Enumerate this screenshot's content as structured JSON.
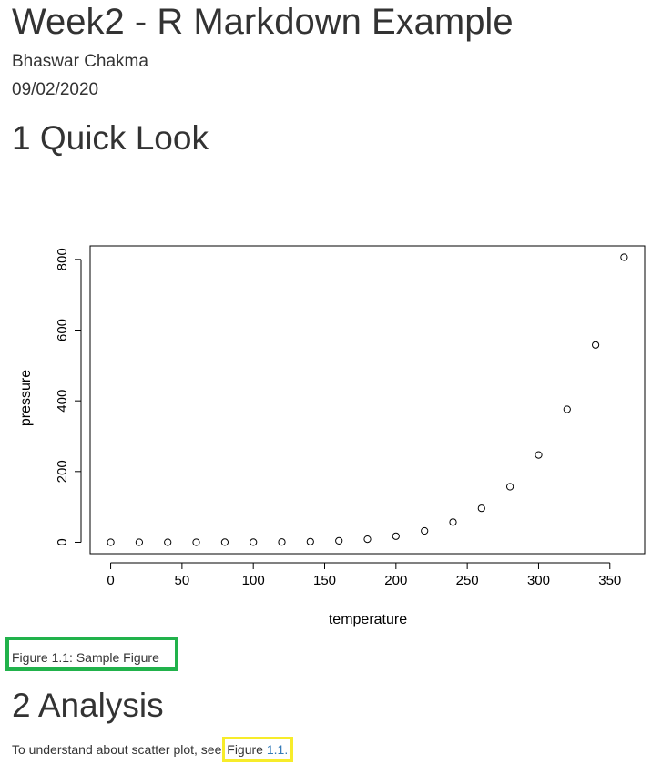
{
  "doc": {
    "title": "Week2 - R Markdown Example",
    "author": "Bhaswar Chakma",
    "date": "09/02/2020"
  },
  "sections": [
    {
      "heading": "1 Quick Look"
    },
    {
      "heading": "2 Analysis"
    }
  ],
  "figure": {
    "caption": "Figure 1.1: Sample Figure"
  },
  "analysis": {
    "text": "To understand about scatter plot, see",
    "link_word": "Figure",
    "link_num": "1.1",
    "link_end": "."
  },
  "colors": {
    "caption_highlight": "#21b24b",
    "link_highlight": "#f7ec2a",
    "link": "#337ab7"
  },
  "chart_data": {
    "type": "scatter",
    "xlabel": "temperature",
    "ylabel": "pressure",
    "x": [
      0,
      20,
      40,
      60,
      80,
      100,
      120,
      140,
      160,
      180,
      200,
      220,
      240,
      260,
      280,
      300,
      320,
      340,
      360
    ],
    "y": [
      0.0002,
      0.0012,
      0.006,
      0.03,
      0.09,
      0.27,
      0.75,
      1.85,
      4.2,
      8.8,
      17.3,
      32.1,
      57,
      96,
      157,
      247,
      376,
      558,
      806
    ],
    "xticks": [
      "0",
      "50",
      "100",
      "150",
      "200",
      "250",
      "300",
      "350"
    ],
    "xtick_values": [
      0,
      50,
      100,
      150,
      200,
      250,
      300,
      350
    ],
    "yticks": [
      "0",
      "200",
      "400",
      "600",
      "800"
    ],
    "ytick_values": [
      0,
      200,
      400,
      600,
      800
    ],
    "xlim": [
      -14.4,
      374.4
    ],
    "ylim": [
      -32.24,
      838.24
    ],
    "grid": false,
    "legend": "none"
  }
}
